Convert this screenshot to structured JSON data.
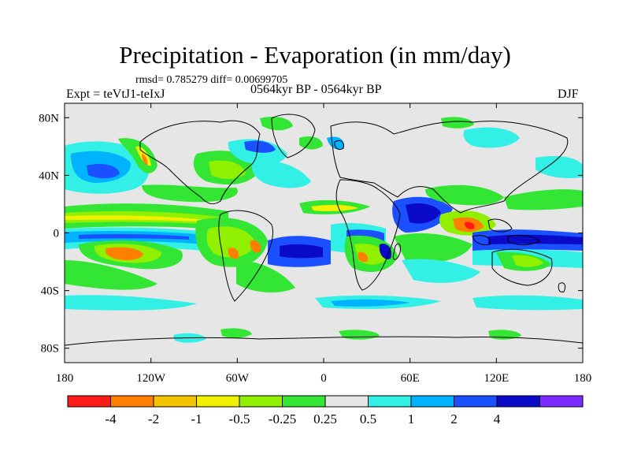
{
  "title": "Precipitation - Evaporation (in mm/day)",
  "stats": "rmsd= 0.785279 diff= 0.00699705",
  "experiment": "Expt = teVtJ1-teIxJ",
  "period": "0564kyr BP - 0564kyr BP",
  "season": "DJF",
  "lat_ticks": [
    {
      "label": "80N",
      "lat": 80
    },
    {
      "label": "40N",
      "lat": 40
    },
    {
      "label": "0",
      "lat": 0
    },
    {
      "label": "40S",
      "lat": -40
    },
    {
      "label": "80S",
      "lat": -80
    }
  ],
  "lon_ticks": [
    {
      "label": "180",
      "lon": -180
    },
    {
      "label": "120W",
      "lon": -120
    },
    {
      "label": "60W",
      "lon": -60
    },
    {
      "label": "0",
      "lon": 0
    },
    {
      "label": "60E",
      "lon": 60
    },
    {
      "label": "120E",
      "lon": 120
    },
    {
      "label": "180",
      "lon": 180
    }
  ],
  "colorbar": {
    "colors": [
      "#ff1a1a",
      "#ff8000",
      "#f5c400",
      "#f0f000",
      "#90f000",
      "#33e633",
      "#e6e6e6",
      "#33f0e6",
      "#00b3ff",
      "#1a50ff",
      "#0a0ac8",
      "#7a2cff"
    ],
    "labels": [
      "-4",
      "-2",
      "-1",
      "-0.5",
      "-0.25",
      "0.25",
      "0.5",
      "1",
      "2",
      "4"
    ]
  },
  "map_colors": {
    "background": "#e6e6e6",
    "coastline": "#000000"
  }
}
